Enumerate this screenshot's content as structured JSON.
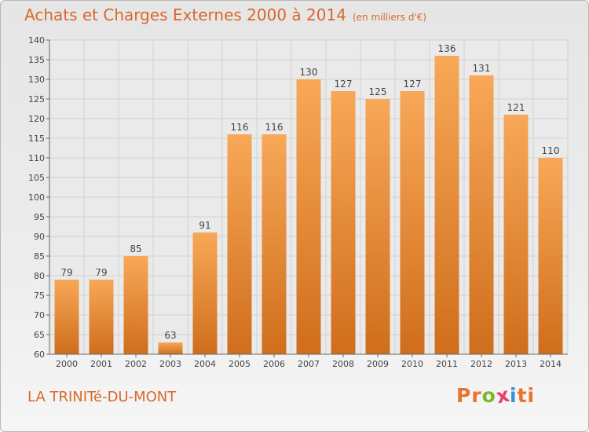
{
  "header": {
    "title": "Achats et Charges Externes 2000 à 2014",
    "subtitle": "(en milliers d'€)"
  },
  "footer": {
    "place": "LA TRINITé-DU-MONT",
    "brand": "Proxiti"
  },
  "brand_colors": [
    "#e8732a",
    "#e8732a",
    "#7ab829",
    "#e83e6f",
    "#3a8fd6",
    "#e8732a",
    "#e8732a"
  ],
  "colors": {
    "bar_light": "#f8a858",
    "bar_dark": "#cf6e1c",
    "accent": "#d9672a"
  },
  "chart_data": {
    "type": "bar",
    "title": "Achats et Charges Externes 2000 à 2014",
    "subtitle": "(en milliers d'€)",
    "categories": [
      "2000",
      "2001",
      "2002",
      "2003",
      "2004",
      "2005",
      "2006",
      "2007",
      "2008",
      "2009",
      "2010",
      "2011",
      "2012",
      "2013",
      "2014"
    ],
    "values": [
      79,
      79,
      85,
      63,
      91,
      116,
      116,
      130,
      127,
      125,
      127,
      136,
      131,
      121,
      110
    ],
    "ylim": [
      60,
      140
    ],
    "yticks": [
      60,
      65,
      70,
      75,
      80,
      85,
      90,
      95,
      100,
      105,
      110,
      115,
      120,
      125,
      130,
      135,
      140
    ],
    "grid": true,
    "data_labels": true
  }
}
